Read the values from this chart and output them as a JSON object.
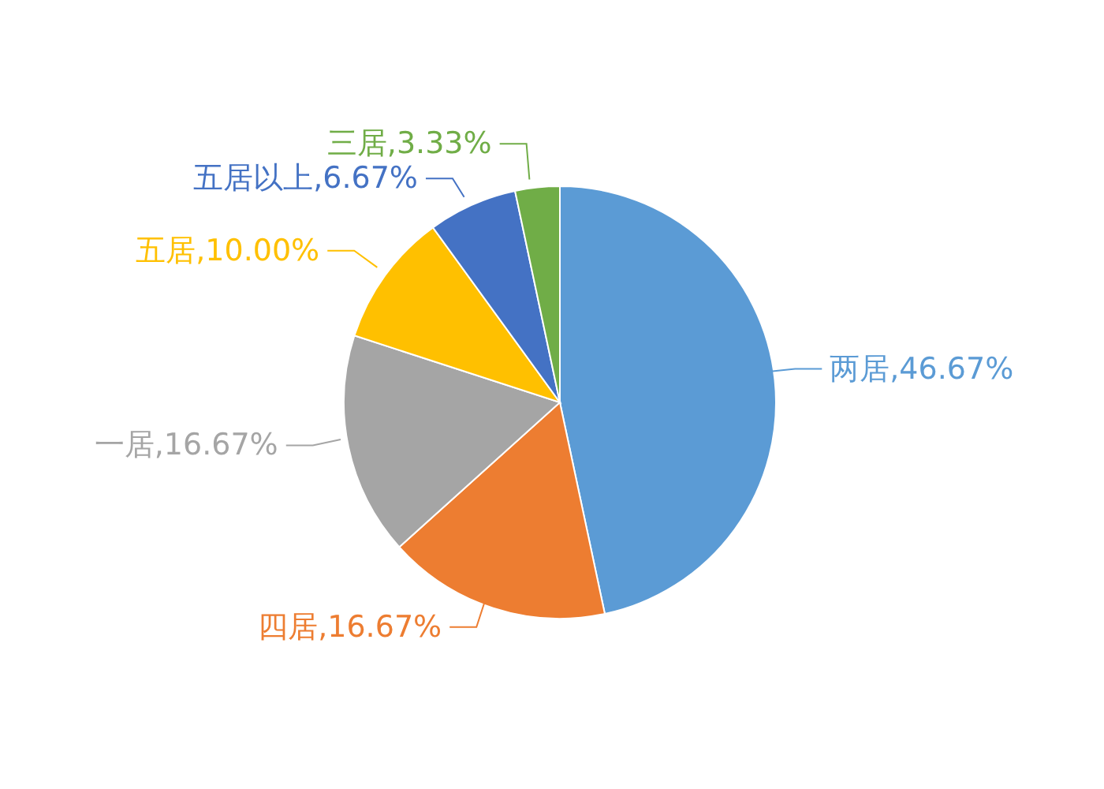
{
  "chart_data": {
    "type": "pie",
    "categories": [
      "两居",
      "四居",
      "一居",
      "五居",
      "五居以上",
      "三居"
    ],
    "values": [
      46.67,
      16.67,
      16.67,
      10.0,
      6.67,
      3.33
    ],
    "value_labels": [
      "46.67%",
      "16.67%",
      "16.67%",
      "10.00%",
      "6.67%",
      "3.33%"
    ],
    "colors": [
      "#5b9bd5",
      "#ed7d31",
      "#a5a5a5",
      "#ffc000",
      "#4472c4",
      "#70ad47"
    ]
  }
}
